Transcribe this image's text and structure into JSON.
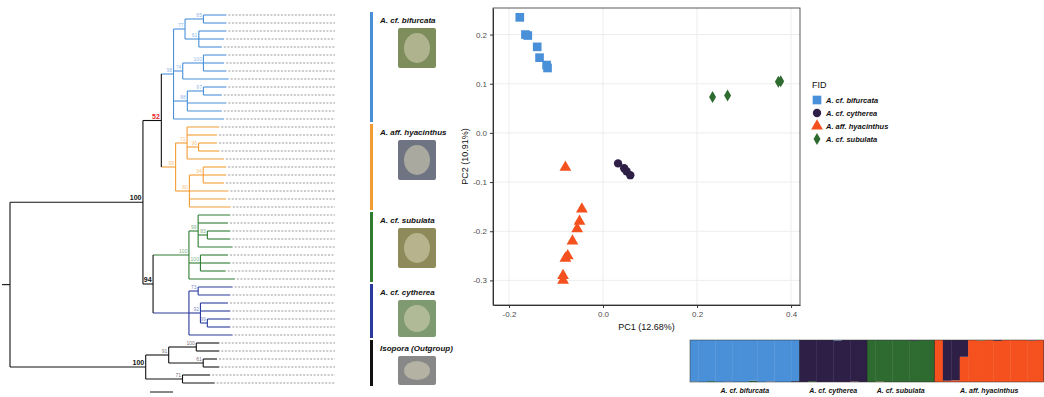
{
  "chart_data": [
    {
      "type": "tree",
      "xlim": [
        0,
        1
      ],
      "scale_bar": 0.1,
      "root": {
        "children": [
          {
            "length": 0.578,
            "support": 100,
            "children": [
              {
                "length": 0.08,
                "support": 52,
                "color": "#e8262a",
                "children": [
                  {
                    "length": 0.053,
                    "support": 98,
                    "clade": {
                      "label": "A. cf. bifurcata",
                      "color": "#4a90d9"
                    },
                    "children": [
                      {
                        "length": 0.05,
                        "support": 77,
                        "children": [
                          {
                            "length": 0.08,
                            "support": 85,
                            "children": [
                              {
                                "length": 0.1
                              },
                              {
                                "length": 0.1
                              }
                            ]
                          },
                          {
                            "length": 0.06,
                            "support": 61,
                            "children": [
                              {
                                "length": 0.12
                              },
                              {
                                "length": 0.11
                              },
                              {
                                "length": 0.1
                              }
                            ]
                          }
                        ]
                      },
                      {
                        "length": 0.04,
                        "support": 74,
                        "children": [
                          {
                            "length": 0.09,
                            "support": 100,
                            "children": [
                              {
                                "length": 0.1
                              },
                              {
                                "length": 0.09
                              },
                              {
                                "length": 0.1
                              }
                            ]
                          },
                          {
                            "length": 0.2
                          }
                        ]
                      },
                      {
                        "length": 0.06,
                        "support": 88,
                        "children": [
                          {
                            "length": 0.07,
                            "support": 97,
                            "children": [
                              {
                                "length": 0.1
                              },
                              {
                                "length": 0.08
                              }
                            ]
                          },
                          {
                            "length": 0.17
                          },
                          {
                            "length": 0.15
                          }
                        ]
                      },
                      {
                        "length": 0.22
                      }
                    ]
                  },
                  {
                    "length": 0.062,
                    "support": 99,
                    "clade": {
                      "label": "A. aff. hyacinthus",
                      "color": "#f39c34"
                    },
                    "children": [
                      {
                        "length": 0.05,
                        "support": 71,
                        "children": [
                          {
                            "length": 0.14
                          },
                          {
                            "length": 0.13
                          },
                          {
                            "length": 0.05,
                            "support": 96,
                            "children": [
                              {
                                "length": 0.08
                              },
                              {
                                "length": 0.09
                              }
                            ]
                          },
                          {
                            "length": 0.16
                          }
                        ]
                      },
                      {
                        "length": 0.06,
                        "support": 80,
                        "children": [
                          {
                            "length": 0.06,
                            "support": 94,
                            "children": [
                              {
                                "length": 0.1
                              },
                              {
                                "length": 0.1
                              },
                              {
                                "length": 0.09
                              }
                            ]
                          },
                          {
                            "length": 0.17
                          },
                          {
                            "length": 0.16
                          },
                          {
                            "length": 0.18
                          }
                        ]
                      }
                    ]
                  }
                ]
              },
              {
                "length": 0.044,
                "support": 94,
                "children": [
                  {
                    "length": 0.156,
                    "support": 100,
                    "clade": {
                      "label": "A. cf. subulata",
                      "color": "#2e7d32"
                    },
                    "children": [
                      {
                        "length": 0.04,
                        "support": 99,
                        "children": [
                          {
                            "length": 0.14
                          },
                          {
                            "length": 0.13
                          },
                          {
                            "length": 0.04,
                            "support": 83,
                            "children": [
                              {
                                "length": 0.1
                              },
                              {
                                "length": 0.1
                              }
                            ]
                          },
                          {
                            "length": 0.15
                          }
                        ]
                      },
                      {
                        "length": 0.05,
                        "support": 100,
                        "children": [
                          {
                            "length": 0.12
                          },
                          {
                            "length": 0.13
                          },
                          {
                            "length": 0.11
                          }
                        ]
                      },
                      {
                        "length": 0.2
                      }
                    ]
                  },
                  {
                    "length": 0.156,
                    "clade": {
                      "label": "A. cf. cytherea",
                      "color": "#2b3a9e"
                    },
                    "children": [
                      {
                        "length": 0.04,
                        "support": 73,
                        "children": [
                          {
                            "length": 0.15
                          },
                          {
                            "length": 0.14
                          }
                        ]
                      },
                      {
                        "length": 0.05,
                        "support": 92,
                        "children": [
                          {
                            "length": 0.12
                          },
                          {
                            "length": 0.13
                          },
                          {
                            "length": 0.03,
                            "support": 99,
                            "children": [
                              {
                                "length": 0.1
                              },
                              {
                                "length": 0.1
                              }
                            ]
                          }
                        ]
                      },
                      {
                        "length": 0.19
                      }
                    ]
                  }
                ]
              }
            ]
          },
          {
            "length": 0.59,
            "support": 100,
            "clade": {
              "label": "Isopora (Outgroup)",
              "color": "#111111"
            },
            "children": [
              {
                "length": 0.1,
                "support": 91,
                "children": [
                  {
                    "length": 0.12,
                    "support": 100,
                    "children": [
                      {
                        "length": 0.1
                      },
                      {
                        "length": 0.1
                      }
                    ]
                  },
                  {
                    "length": 0.15,
                    "support": 61,
                    "children": [
                      {
                        "length": 0.06
                      },
                      {
                        "length": 0.07
                      }
                    ]
                  }
                ]
              },
              {
                "length": 0.16,
                "support": 71,
                "children": [
                  {
                    "length": 0.12
                  },
                  {
                    "length": 0.14
                  }
                ]
              }
            ]
          }
        ]
      }
    },
    {
      "type": "scatter",
      "xlabel": "PC1 (12.68%)",
      "ylabel": "PC2 (10.91%)",
      "xlim": [
        -0.234,
        0.419
      ],
      "ylim": [
        -0.35,
        0.254
      ],
      "xticks": [
        -0.2,
        {
          "value": 0,
          "label": "0.0"
        },
        0.2,
        0.4
      ],
      "yticks": [
        -0.3,
        -0.2,
        -0.1,
        {
          "value": 0,
          "label": "0.0"
        },
        0.1,
        0.2
      ],
      "grid": true,
      "legend": "right",
      "legend_title": "FID",
      "series": [
        {
          "name": "A. cf. bifurcata",
          "color": "#4a90d9",
          "marker": "square",
          "x": [
            -0.177,
            -0.165,
            -0.16,
            -0.14,
            -0.135,
            -0.12,
            -0.118
          ],
          "y": [
            0.235,
            0.2,
            0.198,
            0.175,
            0.153,
            0.138,
            0.132
          ]
        },
        {
          "name": "A. cf. cytherea",
          "color": "#2e1f47",
          "marker": "circle",
          "x": [
            0.032,
            0.045,
            0.05,
            0.058
          ],
          "y": [
            -0.062,
            -0.072,
            -0.078,
            -0.086
          ]
        },
        {
          "name": "A. aff. hyacinthus",
          "color": "#f4511e",
          "marker": "triangle",
          "x": [
            -0.08,
            -0.045,
            -0.05,
            -0.055,
            -0.065,
            -0.075,
            -0.08,
            -0.085,
            -0.085
          ],
          "y": [
            -0.07,
            -0.155,
            -0.18,
            -0.195,
            -0.22,
            -0.25,
            -0.255,
            -0.29,
            -0.3
          ]
        },
        {
          "name": "A. cf. subulata",
          "color": "#2e6b30",
          "marker": "diamond",
          "x": [
            0.233,
            0.265,
            0.373,
            0.378
          ],
          "y": [
            0.073,
            0.076,
            0.104,
            0.105
          ]
        }
      ]
    },
    {
      "type": "stacked_bar",
      "stacked": true,
      "tick_labels": false,
      "ylim": [
        0,
        1
      ],
      "colors": [
        "#4a90d9",
        "#2e1f47",
        "#2e6b30",
        "#f4511e"
      ],
      "groups": [
        {
          "label": "A. cf. bifurcata",
          "values": [
            [
              0.99,
              0,
              0.01,
              0
            ],
            [
              1,
              0,
              0,
              0
            ],
            [
              0.98,
              0,
              0.02,
              0
            ],
            [
              1,
              0,
              0,
              0
            ],
            [
              0.99,
              0.01,
              0,
              0
            ],
            [
              1,
              0,
              0,
              0
            ],
            [
              1,
              0,
              0,
              0
            ],
            [
              0.97,
              0,
              0.03,
              0
            ],
            [
              1,
              0,
              0,
              0
            ],
            [
              0.99,
              0,
              0,
              0.01
            ],
            [
              1,
              0,
              0,
              0
            ],
            [
              1,
              0,
              0,
              0
            ],
            [
              0.98,
              0.02,
              0,
              0
            ]
          ]
        },
        {
          "label": "A. cf. cytherea",
          "values": [
            [
              0,
              1,
              0,
              0
            ],
            [
              0,
              0.98,
              0.02,
              0
            ],
            [
              0,
              1,
              0,
              0
            ],
            [
              0,
              1,
              0,
              0
            ],
            [
              0.01,
              0.99,
              0,
              0
            ],
            [
              0,
              1,
              0,
              0
            ],
            [
              0,
              0.99,
              0,
              0.01
            ],
            [
              0,
              1,
              0,
              0
            ]
          ]
        },
        {
          "label": "A. cf. subulata",
          "values": [
            [
              0,
              0,
              1,
              0
            ],
            [
              0,
              0,
              0.99,
              0.01
            ],
            [
              0,
              0,
              1,
              0
            ],
            [
              0,
              0,
              1,
              0
            ],
            [
              0,
              0,
              1,
              0
            ],
            [
              0,
              0.02,
              0.98,
              0
            ],
            [
              0,
              0,
              1,
              0
            ],
            [
              0,
              0,
              1,
              0
            ]
          ]
        },
        {
          "label": "A. aff. hyacinthus",
          "values": [
            [
              0,
              0,
              0,
              1
            ],
            [
              0,
              0.97,
              0,
              0.03
            ],
            [
              0,
              0.96,
              0,
              0.04
            ],
            [
              0,
              0.4,
              0,
              0.6
            ],
            [
              0,
              0,
              0,
              1
            ],
            [
              0,
              0,
              0.01,
              0.99
            ],
            [
              0,
              0,
              0,
              1
            ],
            [
              0,
              0.02,
              0,
              0.98
            ],
            [
              0,
              0,
              0,
              1
            ],
            [
              0,
              0,
              0,
              1
            ],
            [
              0,
              0,
              0,
              1
            ],
            [
              0,
              0.01,
              0,
              0.99
            ],
            [
              0,
              0,
              0,
              1
            ]
          ]
        }
      ]
    }
  ]
}
